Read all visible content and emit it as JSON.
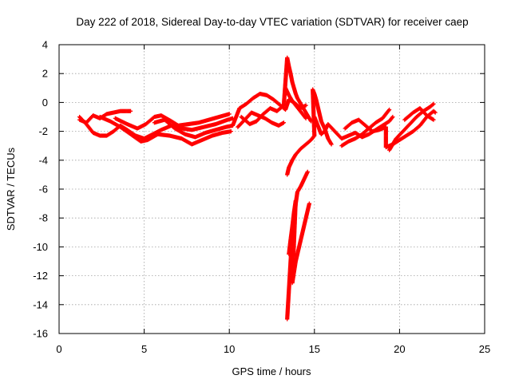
{
  "chart_data": {
    "type": "scatter",
    "title": "Day 222 of 2018, Sidereal Day-to-day VTEC variation (SDTVAR) for receiver caep",
    "xlabel": "GPS time / hours",
    "ylabel": "SDTVAR / TECUs",
    "xlim": [
      0,
      25
    ],
    "ylim": [
      -16,
      4
    ],
    "xticks": [
      0,
      5,
      10,
      15,
      20,
      25
    ],
    "yticks": [
      -16,
      -14,
      -12,
      -10,
      -8,
      -6,
      -4,
      -2,
      0,
      2,
      4
    ],
    "grid": true,
    "marker": "+",
    "colors": {
      "series": "#ff0000",
      "grid": "#a0a0a0",
      "axes": "#000000"
    },
    "series": [
      {
        "name": "SDTVAR",
        "trace": [
          [
            1.2,
            -1.2
          ],
          [
            1.6,
            -1.4
          ],
          [
            2.0,
            -0.9
          ],
          [
            2.4,
            -1.1
          ],
          [
            2.8,
            -0.8
          ],
          [
            3.2,
            -0.7
          ],
          [
            3.6,
            -0.6
          ],
          [
            4.0,
            -0.6
          ],
          [
            4.2,
            -0.6
          ],
          [
            1.2,
            -1.0
          ],
          [
            1.6,
            -1.5
          ],
          [
            2.0,
            -2.1
          ],
          [
            2.4,
            -2.3
          ],
          [
            2.8,
            -2.3
          ],
          [
            3.2,
            -2.0
          ],
          [
            3.6,
            -1.6
          ],
          [
            4.0,
            -1.9
          ],
          [
            4.5,
            -2.3
          ],
          [
            5.0,
            -2.5
          ],
          [
            5.5,
            -2.2
          ],
          [
            6.0,
            -1.9
          ],
          [
            6.6,
            -1.6
          ],
          [
            7.2,
            -1.8
          ],
          [
            7.8,
            -1.9
          ],
          [
            8.5,
            -1.7
          ],
          [
            9.2,
            -1.5
          ],
          [
            9.9,
            -1.2
          ],
          [
            10.2,
            -1.1
          ],
          [
            2.4,
            -1.0
          ],
          [
            3.0,
            -1.3
          ],
          [
            3.6,
            -1.7
          ],
          [
            4.2,
            -2.2
          ],
          [
            4.8,
            -2.7
          ],
          [
            5.2,
            -2.6
          ],
          [
            5.8,
            -2.2
          ],
          [
            6.5,
            -2.3
          ],
          [
            7.2,
            -2.5
          ],
          [
            7.8,
            -2.9
          ],
          [
            8.4,
            -2.6
          ],
          [
            9.0,
            -2.3
          ],
          [
            9.6,
            -2.1
          ],
          [
            10.1,
            -2.0
          ],
          [
            3.3,
            -1.1
          ],
          [
            4.0,
            -1.5
          ],
          [
            4.6,
            -1.8
          ],
          [
            5.1,
            -1.5
          ],
          [
            5.6,
            -1.0
          ],
          [
            6.0,
            -0.9
          ],
          [
            6.6,
            -1.3
          ],
          [
            7.0,
            -1.6
          ],
          [
            7.6,
            -1.5
          ],
          [
            8.2,
            -1.4
          ],
          [
            8.8,
            -1.2
          ],
          [
            9.4,
            -1.0
          ],
          [
            10.0,
            -0.8
          ],
          [
            5.6,
            -1.4
          ],
          [
            6.2,
            -1.2
          ],
          [
            6.8,
            -1.8
          ],
          [
            7.4,
            -2.2
          ],
          [
            8.0,
            -2.4
          ],
          [
            8.6,
            -2.1
          ],
          [
            9.2,
            -1.9
          ],
          [
            9.8,
            -1.7
          ],
          [
            10.2,
            -1.6
          ],
          [
            10.6,
            -0.4
          ],
          [
            11.0,
            -0.1
          ],
          [
            11.4,
            0.3
          ],
          [
            11.8,
            0.6
          ],
          [
            12.2,
            0.5
          ],
          [
            12.6,
            0.2
          ],
          [
            13.0,
            -0.2
          ],
          [
            13.3,
            -0.5
          ],
          [
            13.5,
            0.2
          ],
          [
            13.8,
            0.0
          ],
          [
            14.2,
            -0.4
          ],
          [
            14.5,
            -0.2
          ],
          [
            10.5,
            -1.7
          ],
          [
            10.9,
            -1.2
          ],
          [
            11.3,
            -0.7
          ],
          [
            11.7,
            -0.9
          ],
          [
            12.1,
            -1.1
          ],
          [
            12.5,
            -1.4
          ],
          [
            12.9,
            -1.6
          ],
          [
            13.2,
            -1.4
          ],
          [
            10.7,
            -1.0
          ],
          [
            11.2,
            -1.5
          ],
          [
            11.6,
            -1.3
          ],
          [
            12.0,
            -0.8
          ],
          [
            12.4,
            -0.4
          ],
          [
            12.8,
            -0.6
          ],
          [
            13.2,
            -0.2
          ],
          [
            13.4,
            3.1
          ],
          [
            13.5,
            2.5
          ],
          [
            13.6,
            2.0
          ],
          [
            13.7,
            1.4
          ],
          [
            13.8,
            1.0
          ],
          [
            13.9,
            0.6
          ],
          [
            14.0,
            0.3
          ],
          [
            14.2,
            -0.1
          ],
          [
            14.4,
            -0.5
          ],
          [
            14.6,
            -0.9
          ],
          [
            14.8,
            -1.3
          ],
          [
            13.3,
            1.0
          ],
          [
            13.5,
            0.5
          ],
          [
            13.7,
            0.1
          ],
          [
            13.9,
            -0.2
          ],
          [
            14.1,
            -0.5
          ],
          [
            14.3,
            -0.8
          ],
          [
            14.5,
            -1.1
          ],
          [
            13.4,
            -15.0
          ],
          [
            13.45,
            -14.0
          ],
          [
            13.5,
            -13.0
          ],
          [
            13.55,
            -12.0
          ],
          [
            13.6,
            -11.0
          ],
          [
            13.65,
            -10.0
          ],
          [
            13.7,
            -9.0
          ],
          [
            13.8,
            -8.0
          ],
          [
            13.9,
            -7.0
          ],
          [
            14.0,
            -6.2
          ],
          [
            14.2,
            -5.8
          ],
          [
            14.4,
            -5.3
          ],
          [
            14.6,
            -4.8
          ],
          [
            13.5,
            -10.5
          ],
          [
            13.6,
            -9.5
          ],
          [
            13.7,
            -8.6
          ],
          [
            13.8,
            -7.6
          ],
          [
            13.9,
            -6.8
          ],
          [
            13.7,
            -12.5
          ],
          [
            13.9,
            -11.0
          ],
          [
            14.1,
            -10.0
          ],
          [
            14.3,
            -9.0
          ],
          [
            14.5,
            -8.0
          ],
          [
            14.7,
            -7.0
          ],
          [
            13.4,
            -5.0
          ],
          [
            13.5,
            -4.5
          ],
          [
            13.7,
            -4.0
          ],
          [
            13.9,
            -3.6
          ],
          [
            14.2,
            -3.2
          ],
          [
            14.5,
            -2.9
          ],
          [
            14.8,
            -2.6
          ],
          [
            15.0,
            -2.3
          ],
          [
            14.9,
            0.9
          ],
          [
            15.0,
            0.6
          ],
          [
            15.1,
            0.2
          ],
          [
            15.2,
            -0.3
          ],
          [
            15.3,
            -0.8
          ],
          [
            15.4,
            -1.3
          ],
          [
            15.6,
            -1.8
          ],
          [
            15.8,
            -2.5
          ],
          [
            16.0,
            -2.9
          ],
          [
            15.0,
            -1.0
          ],
          [
            15.2,
            -1.6
          ],
          [
            15.4,
            -2.2
          ],
          [
            15.6,
            -2.0
          ],
          [
            15.8,
            -1.5
          ],
          [
            16.6,
            -2.5
          ],
          [
            17.0,
            -2.3
          ],
          [
            17.4,
            -2.1
          ],
          [
            17.8,
            -2.4
          ],
          [
            18.2,
            -2.2
          ],
          [
            18.6,
            -1.9
          ],
          [
            19.0,
            -1.6
          ],
          [
            19.4,
            -1.3
          ],
          [
            19.6,
            -1.0
          ],
          [
            16.6,
            -3.0
          ],
          [
            17.0,
            -2.7
          ],
          [
            17.4,
            -2.5
          ],
          [
            17.8,
            -2.2
          ],
          [
            18.2,
            -1.8
          ],
          [
            18.6,
            -1.4
          ],
          [
            19.0,
            -1.1
          ],
          [
            19.4,
            -0.5
          ],
          [
            16.8,
            -1.8
          ],
          [
            17.2,
            -1.4
          ],
          [
            17.6,
            -1.2
          ],
          [
            18.0,
            -1.6
          ],
          [
            18.4,
            -2.0
          ],
          [
            18.8,
            -1.9
          ],
          [
            19.2,
            -1.7
          ],
          [
            19.2,
            -3.1
          ],
          [
            19.6,
            -2.9
          ],
          [
            20.0,
            -2.6
          ],
          [
            20.4,
            -2.3
          ],
          [
            20.8,
            -2.0
          ],
          [
            21.2,
            -1.6
          ],
          [
            21.6,
            -1.0
          ],
          [
            22.0,
            -0.6
          ],
          [
            22.1,
            -0.7
          ],
          [
            19.4,
            -3.3
          ],
          [
            19.8,
            -2.5
          ],
          [
            20.2,
            -2.0
          ],
          [
            20.6,
            -1.5
          ],
          [
            21.0,
            -1.0
          ],
          [
            21.4,
            -0.6
          ],
          [
            21.8,
            -0.3
          ],
          [
            22.0,
            -0.1
          ],
          [
            20.3,
            -1.2
          ],
          [
            20.8,
            -0.7
          ],
          [
            21.2,
            -0.4
          ],
          [
            21.6,
            -0.9
          ],
          [
            22.0,
            -1.2
          ]
        ]
      }
    ]
  }
}
